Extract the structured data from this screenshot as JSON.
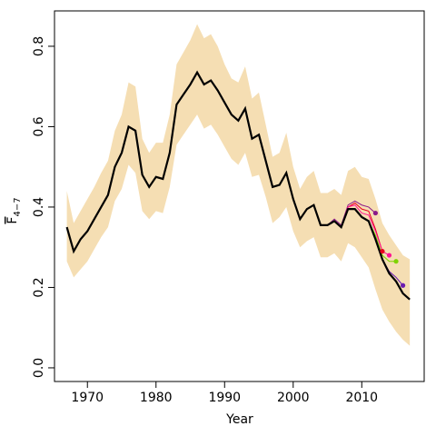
{
  "chart_data": {
    "type": "line",
    "xlabel": "Year",
    "ylabel": "F",
    "ylabel_sub": "4−7",
    "xlim": [
      1965.2,
      2019.1
    ],
    "ylim": [
      -0.034,
      0.888
    ],
    "xticks": [
      1970,
      1980,
      1990,
      2000,
      2010
    ],
    "yticks": [
      {
        "value": 0,
        "label": "0.0"
      },
      0.2,
      0.4,
      0.6,
      0.8
    ],
    "x": [
      1967,
      1968,
      1969,
      1970,
      1971,
      1972,
      1973,
      1974,
      1975,
      1976,
      1977,
      1978,
      1979,
      1980,
      1981,
      1982,
      1983,
      1984,
      1985,
      1986,
      1987,
      1988,
      1989,
      1990,
      1991,
      1992,
      1993,
      1994,
      1995,
      1996,
      1997,
      1998,
      1999,
      2000,
      2001,
      2002,
      2003,
      2004,
      2005,
      2006,
      2007,
      2008,
      2009,
      2010,
      2011,
      2012,
      2013,
      2014,
      2015,
      2016,
      2017
    ],
    "band": {
      "color": "#f5deb3",
      "upper": [
        0.44,
        0.36,
        0.39,
        0.42,
        0.45,
        0.485,
        0.515,
        0.59,
        0.63,
        0.71,
        0.7,
        0.57,
        0.535,
        0.56,
        0.56,
        0.63,
        0.755,
        0.785,
        0.815,
        0.855,
        0.82,
        0.83,
        0.8,
        0.755,
        0.72,
        0.71,
        0.75,
        0.67,
        0.685,
        0.605,
        0.525,
        0.535,
        0.585,
        0.5,
        0.445,
        0.475,
        0.49,
        0.435,
        0.435,
        0.445,
        0.43,
        0.49,
        0.5,
        0.475,
        0.47,
        0.42,
        0.36,
        0.33,
        0.305,
        0.28,
        0.27
      ],
      "lower": [
        0.265,
        0.225,
        0.245,
        0.265,
        0.295,
        0.325,
        0.35,
        0.415,
        0.445,
        0.505,
        0.485,
        0.39,
        0.37,
        0.39,
        0.385,
        0.45,
        0.555,
        0.58,
        0.605,
        0.63,
        0.595,
        0.605,
        0.58,
        0.55,
        0.52,
        0.505,
        0.535,
        0.475,
        0.48,
        0.425,
        0.36,
        0.375,
        0.4,
        0.34,
        0.3,
        0.315,
        0.325,
        0.275,
        0.275,
        0.285,
        0.265,
        0.31,
        0.3,
        0.275,
        0.25,
        0.195,
        0.145,
        0.115,
        0.09,
        0.07,
        0.055
      ]
    },
    "series": [
      {
        "color": "#000000",
        "width": 2.2,
        "endpoint": false,
        "values": [
          0.35,
          0.29,
          0.32,
          0.34,
          0.37,
          0.4,
          0.43,
          0.5,
          0.535,
          0.6,
          0.59,
          0.48,
          0.45,
          0.475,
          0.47,
          0.535,
          0.655,
          0.68,
          0.705,
          0.735,
          0.705,
          0.715,
          0.69,
          0.66,
          0.63,
          0.615,
          0.645,
          0.57,
          0.58,
          0.515,
          0.45,
          0.455,
          0.485,
          0.42,
          0.37,
          0.395,
          0.405,
          0.355,
          0.355,
          0.365,
          0.35,
          0.395,
          0.395,
          0.375,
          0.365,
          0.32,
          0.27,
          0.235,
          0.215,
          0.185,
          0.17
        ]
      },
      {
        "color": "#8b1a89",
        "width": 1,
        "endpoint": true,
        "x": [
          2003,
          2004,
          2005,
          2006,
          2007,
          2008,
          2009,
          2010,
          2011,
          2012
        ],
        "values": [
          0.405,
          0.355,
          0.355,
          0.37,
          0.355,
          0.405,
          0.415,
          0.405,
          0.4,
          0.385
        ]
      },
      {
        "color": "#e8001c",
        "width": 1,
        "endpoint": true,
        "x": [
          2007,
          2008,
          2009,
          2010,
          2011,
          2012,
          2013
        ],
        "values": [
          0.35,
          0.4,
          0.41,
          0.395,
          0.39,
          0.345,
          0.29
        ]
      },
      {
        "color": "#ff1493",
        "width": 1,
        "endpoint": true,
        "x": [
          2007,
          2008,
          2009,
          2010,
          2011,
          2012,
          2013,
          2014
        ],
        "values": [
          0.35,
          0.4,
          0.405,
          0.385,
          0.38,
          0.34,
          0.29,
          0.28
        ]
      },
      {
        "color": "#7fd300",
        "width": 1,
        "endpoint": true,
        "x": [
          2011,
          2012,
          2013,
          2014,
          2015
        ],
        "values": [
          0.365,
          0.33,
          0.28,
          0.265,
          0.265
        ]
      },
      {
        "color": "#6a1cb0",
        "width": 1,
        "endpoint": true,
        "x": [
          2012,
          2013,
          2014,
          2015,
          2016
        ],
        "values": [
          0.32,
          0.27,
          0.24,
          0.225,
          0.205
        ]
      }
    ]
  }
}
